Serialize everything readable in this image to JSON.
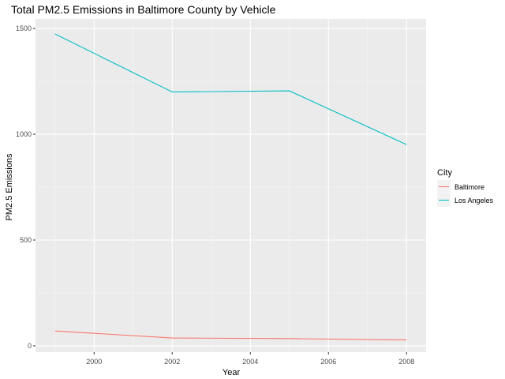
{
  "chart_data": {
    "type": "line",
    "title": "Total PM2.5 Emissions in Baltimore County by Vehicle",
    "xlabel": "Year",
    "ylabel": "PM2.5 Emissions",
    "x": [
      1999,
      2002,
      2005,
      2008
    ],
    "xlim": [
      1998.5,
      2008.5
    ],
    "ylim": [
      -30,
      1545
    ],
    "xticks": [
      2000,
      2002,
      2004,
      2006,
      2008
    ],
    "xtick_labels": [
      "2000",
      "2002",
      "2004",
      "2006",
      "2008"
    ],
    "yticks": [
      0,
      500,
      1000,
      1500
    ],
    "ytick_labels": [
      "0",
      "500",
      "1000",
      "1500"
    ],
    "grid": true,
    "legend": {
      "title": "City",
      "placement": "right"
    },
    "series": [
      {
        "name": "Baltimore",
        "color": "#F8766D",
        "values": [
          70,
          37,
          34,
          28
        ]
      },
      {
        "name": "Los Angeles",
        "color": "#00BFC4",
        "values": [
          1474,
          1200,
          1205,
          951
        ]
      }
    ],
    "colors": {
      "panel_background": "#EBEBEB",
      "grid_major": "#FFFFFF",
      "grid_minor": "#F5F5F5",
      "text": "#000000",
      "tick_text": "#4D4D4D",
      "tick_mark": "#333333"
    }
  }
}
